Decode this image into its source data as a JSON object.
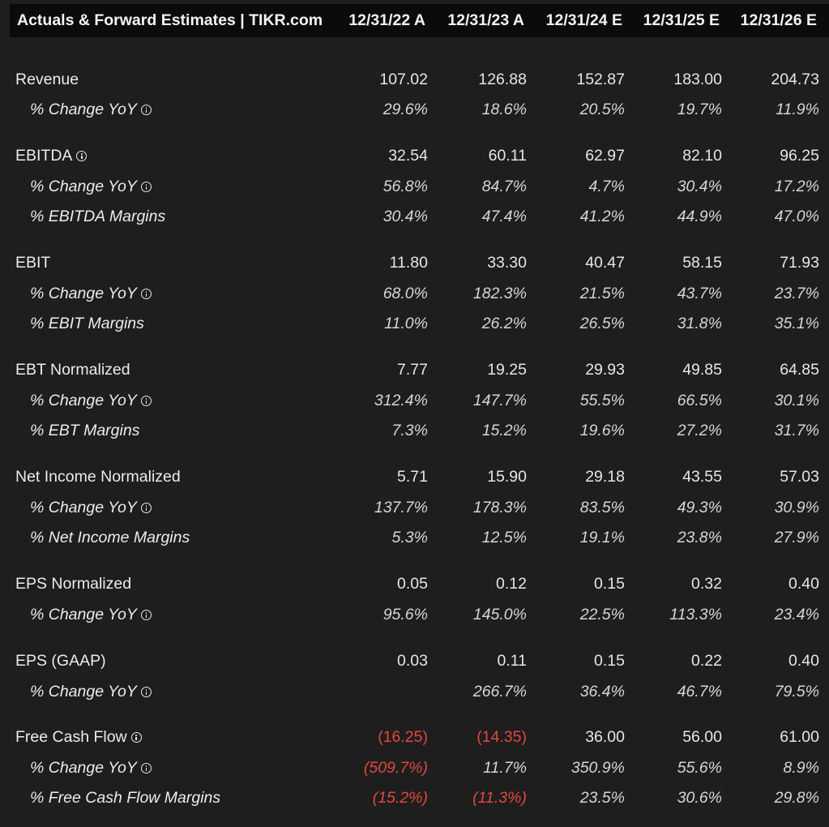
{
  "header": {
    "title": "Actuals & Forward Estimates | TIKR.com",
    "columns": [
      "12/31/22 A",
      "12/31/23 A",
      "12/31/24 E",
      "12/31/25 E",
      "12/31/26 E"
    ]
  },
  "colors": {
    "background": "#1e1e1e",
    "header_background": "#0b0b0b",
    "negative": "#e0483f",
    "text": "#e4e4e4"
  },
  "rows": [
    {
      "id": "revenue",
      "label": "Revenue",
      "sub": false,
      "info": false,
      "values": [
        "107.02",
        "126.88",
        "152.87",
        "183.00",
        "204.73"
      ]
    },
    {
      "id": "revenue-yoy",
      "label": "% Change YoY",
      "sub": true,
      "info": true,
      "values": [
        "29.6%",
        "18.6%",
        "20.5%",
        "19.7%",
        "11.9%"
      ]
    },
    {
      "id": "ebitda",
      "label": "EBITDA",
      "sub": false,
      "info": true,
      "values": [
        "32.54",
        "60.11",
        "62.97",
        "82.10",
        "96.25"
      ]
    },
    {
      "id": "ebitda-yoy",
      "label": "% Change YoY",
      "sub": true,
      "info": true,
      "values": [
        "56.8%",
        "84.7%",
        "4.7%",
        "30.4%",
        "17.2%"
      ]
    },
    {
      "id": "ebitda-margins",
      "label": "% EBITDA Margins",
      "sub": true,
      "info": false,
      "values": [
        "30.4%",
        "47.4%",
        "41.2%",
        "44.9%",
        "47.0%"
      ]
    },
    {
      "id": "ebit",
      "label": "EBIT",
      "sub": false,
      "info": false,
      "values": [
        "11.80",
        "33.30",
        "40.47",
        "58.15",
        "71.93"
      ]
    },
    {
      "id": "ebit-yoy",
      "label": "% Change YoY",
      "sub": true,
      "info": true,
      "values": [
        "68.0%",
        "182.3%",
        "21.5%",
        "43.7%",
        "23.7%"
      ]
    },
    {
      "id": "ebit-margins",
      "label": "% EBIT Margins",
      "sub": true,
      "info": false,
      "values": [
        "11.0%",
        "26.2%",
        "26.5%",
        "31.8%",
        "35.1%"
      ]
    },
    {
      "id": "ebt-normalized",
      "label": "EBT Normalized",
      "sub": false,
      "info": false,
      "values": [
        "7.77",
        "19.25",
        "29.93",
        "49.85",
        "64.85"
      ]
    },
    {
      "id": "ebt-yoy",
      "label": "% Change YoY",
      "sub": true,
      "info": true,
      "values": [
        "312.4%",
        "147.7%",
        "55.5%",
        "66.5%",
        "30.1%"
      ]
    },
    {
      "id": "ebt-margins",
      "label": "% EBT Margins",
      "sub": true,
      "info": false,
      "values": [
        "7.3%",
        "15.2%",
        "19.6%",
        "27.2%",
        "31.7%"
      ]
    },
    {
      "id": "net-income-normalized",
      "label": "Net Income Normalized",
      "sub": false,
      "info": false,
      "values": [
        "5.71",
        "15.90",
        "29.18",
        "43.55",
        "57.03"
      ]
    },
    {
      "id": "net-income-yoy",
      "label": "% Change YoY",
      "sub": true,
      "info": true,
      "values": [
        "137.7%",
        "178.3%",
        "83.5%",
        "49.3%",
        "30.9%"
      ]
    },
    {
      "id": "net-income-margins",
      "label": "% Net Income Margins",
      "sub": true,
      "info": false,
      "values": [
        "5.3%",
        "12.5%",
        "19.1%",
        "23.8%",
        "27.9%"
      ]
    },
    {
      "id": "eps-normalized",
      "label": "EPS Normalized",
      "sub": false,
      "info": false,
      "values": [
        "0.05",
        "0.12",
        "0.15",
        "0.32",
        "0.40"
      ]
    },
    {
      "id": "eps-normalized-yoy",
      "label": "% Change YoY",
      "sub": true,
      "info": true,
      "values": [
        "95.6%",
        "145.0%",
        "22.5%",
        "113.3%",
        "23.4%"
      ]
    },
    {
      "id": "eps-gaap",
      "label": "EPS (GAAP)",
      "sub": false,
      "info": false,
      "values": [
        "0.03",
        "0.11",
        "0.15",
        "0.22",
        "0.40"
      ]
    },
    {
      "id": "eps-gaap-yoy",
      "label": "% Change YoY",
      "sub": true,
      "info": true,
      "values": [
        "",
        "266.7%",
        "36.4%",
        "46.7%",
        "79.5%"
      ]
    },
    {
      "id": "free-cash-flow",
      "label": "Free Cash Flow",
      "sub": false,
      "info": true,
      "values": [
        "(16.25)",
        "(14.35)",
        "36.00",
        "56.00",
        "61.00"
      ]
    },
    {
      "id": "fcf-yoy",
      "label": "% Change YoY",
      "sub": true,
      "info": true,
      "values": [
        "(509.7%)",
        "11.7%",
        "350.9%",
        "55.6%",
        "8.9%"
      ]
    },
    {
      "id": "fcf-margins",
      "label": "% Free Cash Flow Margins",
      "sub": true,
      "info": false,
      "values": [
        "(15.2%)",
        "(11.3%)",
        "23.5%",
        "30.6%",
        "29.8%"
      ]
    }
  ]
}
